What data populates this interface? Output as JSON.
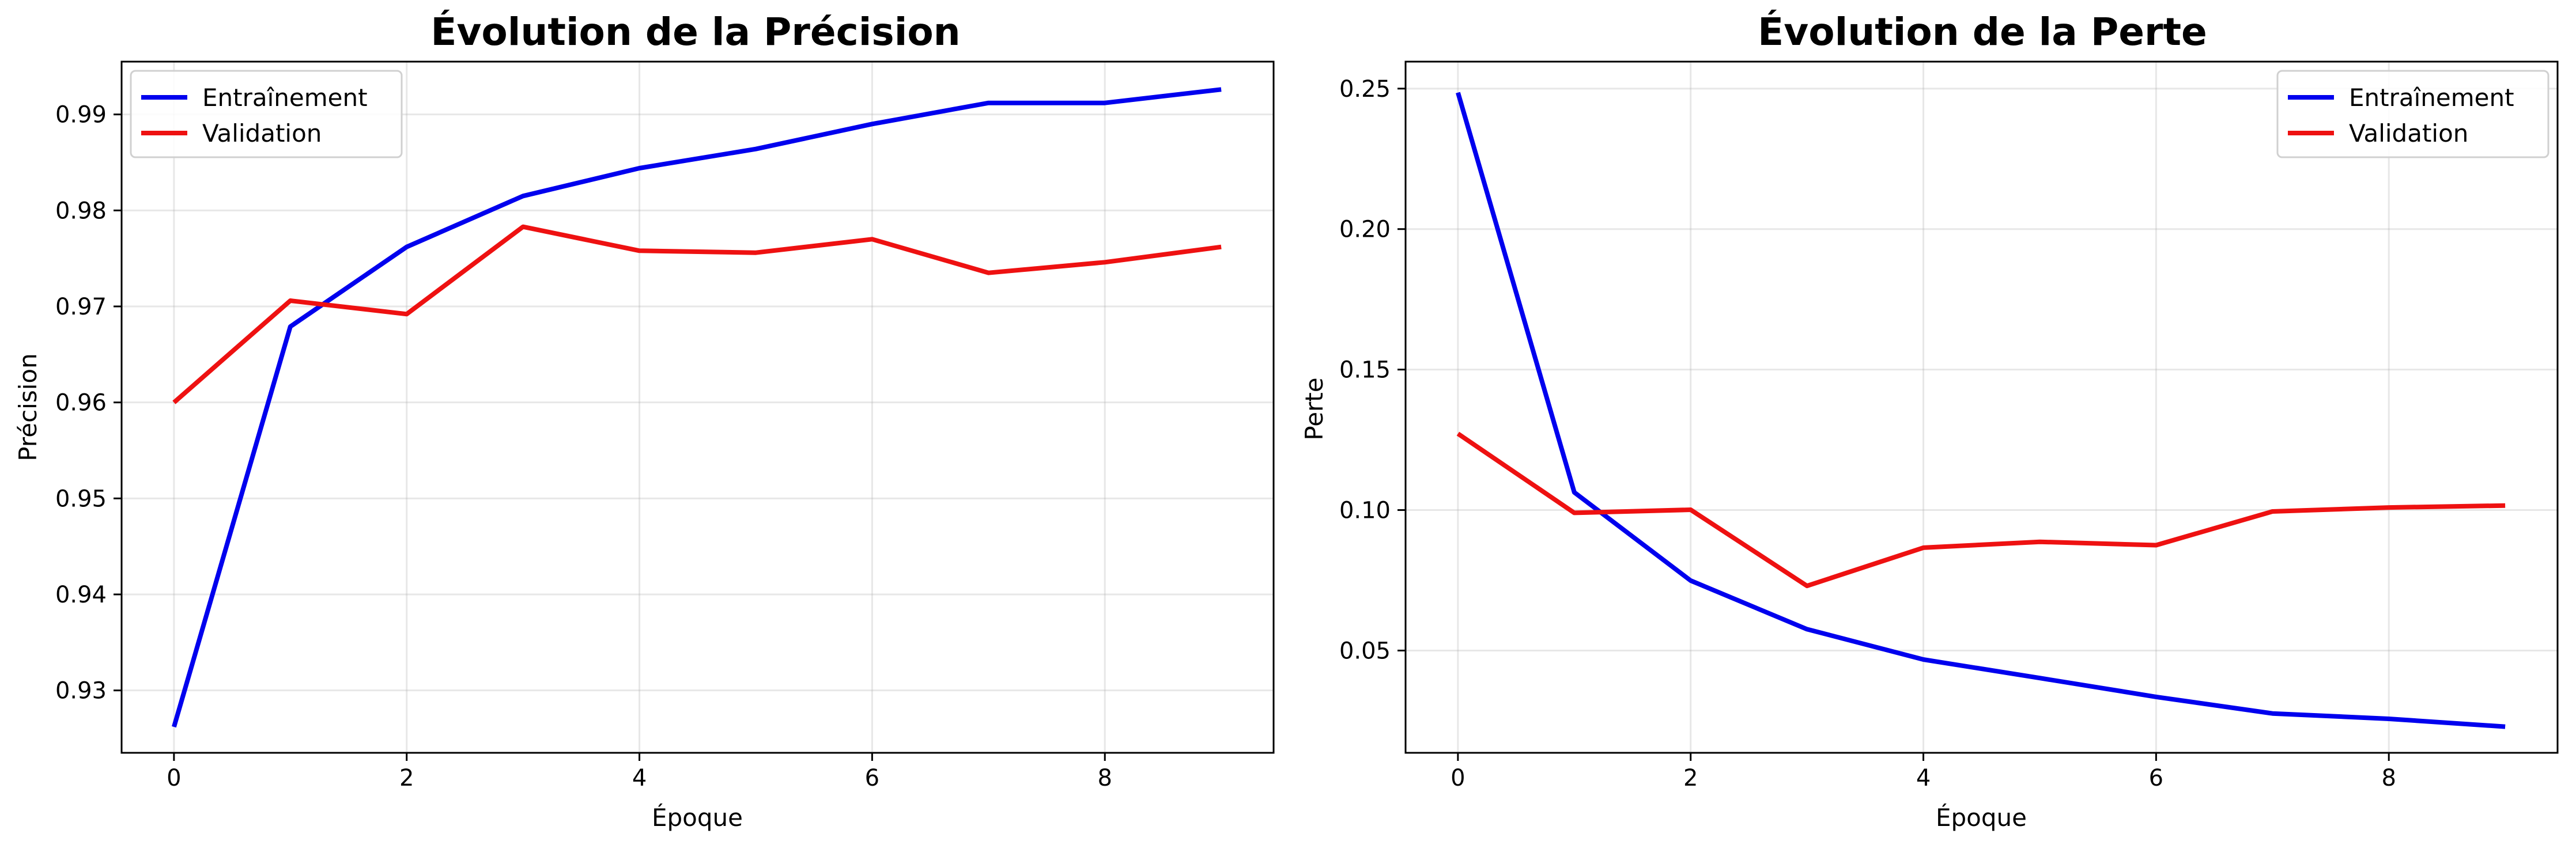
{
  "colors": {
    "train": "#0000ee",
    "val": "#ee1111"
  },
  "chart_data": [
    {
      "type": "line",
      "title": "Évolution de la Précision",
      "xlabel": "Époque",
      "ylabel": "Précision",
      "xlim": [
        -0.45,
        9.45
      ],
      "ylim": [
        0.9235,
        0.9955
      ],
      "xticks": [
        0,
        2,
        4,
        6,
        8
      ],
      "yticks": [
        0.93,
        0.94,
        0.95,
        0.96,
        0.97,
        0.98,
        0.99
      ],
      "ytick_labels": [
        "0.93",
        "0.94",
        "0.95",
        "0.96",
        "0.97",
        "0.98",
        "0.99"
      ],
      "grid": true,
      "legend_position": "top-left",
      "x": [
        0,
        1,
        2,
        3,
        4,
        5,
        6,
        7,
        8,
        9
      ],
      "series": [
        {
          "name": "Entraînement",
          "color_key": "train",
          "values": [
            0.9262,
            0.9679,
            0.9762,
            0.9815,
            0.9844,
            0.9864,
            0.989,
            0.9912,
            0.9912,
            0.9926
          ]
        },
        {
          "name": "Validation",
          "color_key": "val",
          "values": [
            0.96,
            0.9706,
            0.9692,
            0.9783,
            0.9758,
            0.9756,
            0.977,
            0.9735,
            0.9746,
            0.9762
          ]
        }
      ]
    },
    {
      "type": "line",
      "title": "Évolution de la Perte",
      "xlabel": "Époque",
      "ylabel": "Perte",
      "xlim": [
        -0.45,
        9.45
      ],
      "ylim": [
        0.0136,
        0.2596
      ],
      "xticks": [
        0,
        2,
        4,
        6,
        8
      ],
      "yticks": [
        0.05,
        0.1,
        0.15,
        0.2,
        0.25
      ],
      "ytick_labels": [
        "0.05",
        "0.10",
        "0.15",
        "0.20",
        "0.25"
      ],
      "grid": true,
      "legend_position": "top-right",
      "x": [
        0,
        1,
        2,
        3,
        4,
        5,
        6,
        7,
        8,
        9
      ],
      "series": [
        {
          "name": "Entraînement",
          "color_key": "train",
          "values": [
            0.2486,
            0.1063,
            0.0749,
            0.0576,
            0.0468,
            0.0402,
            0.0335,
            0.0276,
            0.0257,
            0.0229
          ]
        },
        {
          "name": "Validation",
          "color_key": "val",
          "values": [
            0.1272,
            0.099,
            0.1001,
            0.073,
            0.0866,
            0.0887,
            0.0875,
            0.0995,
            0.1009,
            0.1016
          ]
        }
      ]
    }
  ]
}
